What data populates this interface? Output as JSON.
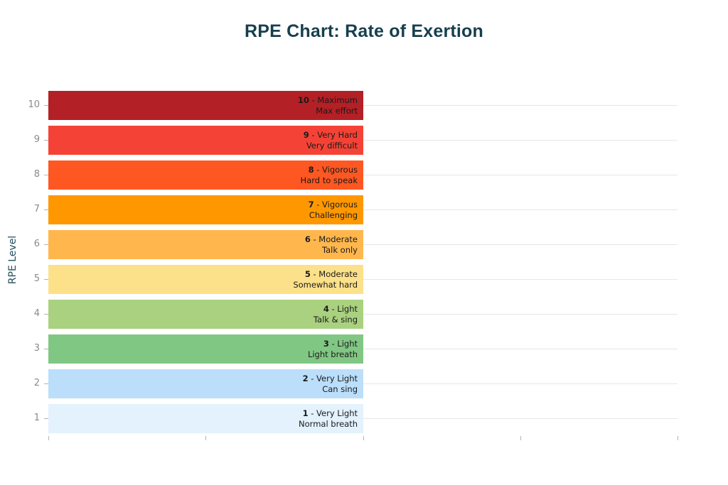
{
  "title": "RPE Chart: Rate of Exertion",
  "colors": {
    "background": "#ffffff",
    "title_text": "#173f4d",
    "axis_title_text": "#24505e",
    "tick_label_text": "#8a8a8a",
    "gridline": "#e6e6e6",
    "bar_label_text": "#1a1a1a"
  },
  "chart_data": {
    "type": "bar",
    "orientation": "horizontal",
    "title": "RPE Chart: Rate of Exertion",
    "xlabel": "",
    "ylabel": "RPE Level",
    "xlim": [
      0,
      2
    ],
    "x_ticks_shown_without_labels": [
      0,
      0.5,
      1,
      1.5,
      2
    ],
    "grid": "horizontal-only",
    "legend": "none",
    "categories": [
      10,
      9,
      8,
      7,
      6,
      5,
      4,
      3,
      2,
      1
    ],
    "values": [
      1,
      1,
      1,
      1,
      1,
      1,
      1,
      1,
      1,
      1
    ],
    "label_separator": " - ",
    "levels": [
      {
        "level": 10,
        "intensity": "Maximum",
        "description": "Max effort",
        "color": "#b32025"
      },
      {
        "level": 9,
        "intensity": "Very Hard",
        "description": "Very difficult",
        "color": "#f44336"
      },
      {
        "level": 8,
        "intensity": "Vigorous",
        "description": "Hard to speak",
        "color": "#ff5722"
      },
      {
        "level": 7,
        "intensity": "Vigorous",
        "description": "Challenging",
        "color": "#ff9800"
      },
      {
        "level": 6,
        "intensity": "Moderate",
        "description": "Talk only",
        "color": "#ffb74d"
      },
      {
        "level": 5,
        "intensity": "Moderate",
        "description": "Somewhat hard",
        "color": "#fce18a"
      },
      {
        "level": 4,
        "intensity": "Light",
        "description": "Talk & sing",
        "color": "#a9d17f"
      },
      {
        "level": 3,
        "intensity": "Light",
        "description": "Light breath",
        "color": "#81c784"
      },
      {
        "level": 2,
        "intensity": "Very Light",
        "description": "Can sing",
        "color": "#bbdefb"
      },
      {
        "level": 1,
        "intensity": "Very Light",
        "description": "Normal breath",
        "color": "#e3f2fd"
      }
    ]
  }
}
